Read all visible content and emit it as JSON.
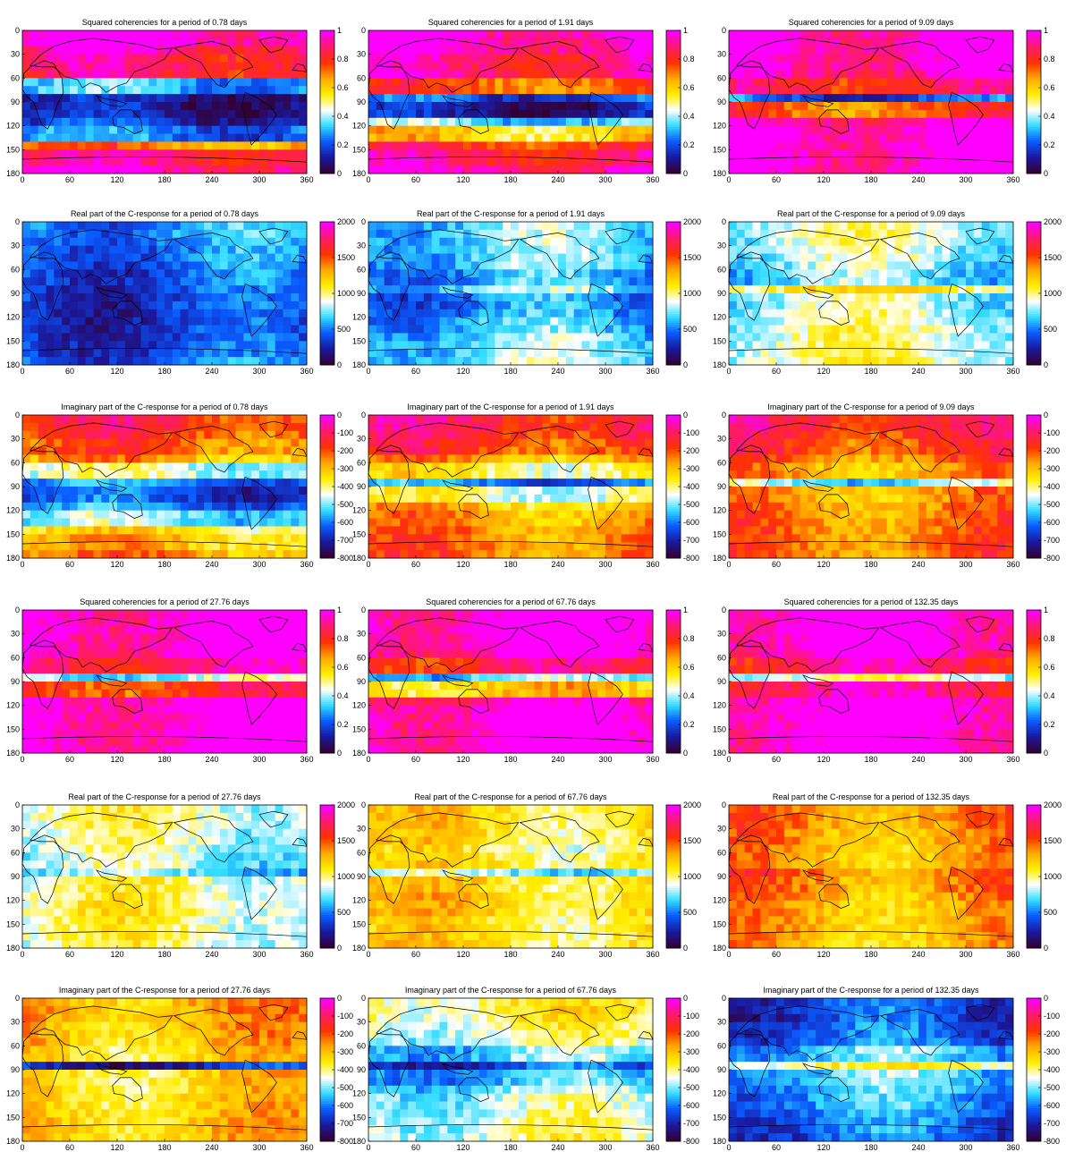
{
  "figure": {
    "panels": [
      {
        "title": "Squared coherencies for a period of   0.78 days",
        "colormap": "coherency",
        "vmin": 0,
        "vmax": 1,
        "cbar_ticks": [
          "0",
          "0.2",
          "0.4",
          "0.6",
          "0.8",
          "1"
        ],
        "bands": [
          1.0,
          0.92,
          0.88,
          0.85,
          0.3,
          0.1,
          0.1,
          0.15,
          0.25,
          0.7,
          0.88,
          0.95
        ]
      },
      {
        "title": "Squared coherencies for a period of   1.91 days",
        "colormap": "coherency",
        "vmin": 0,
        "vmax": 1,
        "cbar_ticks": [
          "0",
          "0.2",
          "0.4",
          "0.6",
          "0.8",
          "1"
        ],
        "bands": [
          0.98,
          0.97,
          0.9,
          0.92,
          0.75,
          0.2,
          0.1,
          0.35,
          0.6,
          0.8,
          0.88,
          0.95
        ]
      },
      {
        "title": "Squared coherencies for a period of   9.09 days",
        "colormap": "coherency",
        "vmin": 0,
        "vmax": 1,
        "cbar_ticks": [
          "0",
          "0.2",
          "0.4",
          "0.6",
          "0.8",
          "1"
        ],
        "bands": [
          1.0,
          1.0,
          0.98,
          0.95,
          0.85,
          0.2,
          0.75,
          0.95,
          1.0,
          1.0,
          1.0,
          1.0
        ]
      },
      {
        "title": "Real part of the C-response for a period of   0.78 days",
        "colormap": "cresponse",
        "vmin": 0,
        "vmax": 2000,
        "cbar_ticks": [
          "0",
          "500",
          "1000",
          "1500",
          "2000"
        ],
        "bands": [
          550,
          520,
          480,
          450,
          420,
          380,
          360,
          340,
          330,
          350,
          380,
          420
        ]
      },
      {
        "title": "Real part of the C-response for a period of   1.91 days",
        "colormap": "cresponse",
        "vmin": 0,
        "vmax": 2000,
        "cbar_ticks": [
          "0",
          "500",
          "1000",
          "1500",
          "2000"
        ],
        "bands": [
          700,
          700,
          680,
          650,
          560,
          720,
          500,
          520,
          600,
          680,
          720,
          750
        ]
      },
      {
        "title": "Real part of the C-response for a period of   9.09 days",
        "colormap": "cresponse",
        "vmin": 0,
        "vmax": 2000,
        "cbar_ticks": [
          "0",
          "500",
          "1000",
          "1500",
          "2000"
        ],
        "bands": [
          880,
          860,
          820,
          760,
          700,
          1100,
          820,
          860,
          900,
          930,
          950,
          960
        ]
      },
      {
        "title": "Imaginary part of the C-response for a period of   0.78 days",
        "colormap": "imaginary",
        "vmin": -800,
        "vmax": 0,
        "cbar_ticks": [
          "-800",
          "-700",
          "-600",
          "-500",
          "-400",
          "-300",
          "-200",
          "-100",
          "0"
        ],
        "bands": [
          -150,
          -180,
          -220,
          -280,
          -450,
          -600,
          -650,
          -600,
          -500,
          -350,
          -300,
          -250
        ]
      },
      {
        "title": "Imaginary part of the C-response for a period of   1.91 days",
        "colormap": "imaginary",
        "vmin": -800,
        "vmax": 0,
        "cbar_ticks": [
          "-800",
          "-700",
          "-600",
          "-500",
          "-400",
          "-300",
          "-200",
          "-100",
          "0"
        ],
        "bands": [
          -120,
          -140,
          -180,
          -260,
          -380,
          -600,
          -420,
          -300,
          -260,
          -240,
          -230,
          -220
        ]
      },
      {
        "title": "Imaginary part of the C-response for a period of   9.09 days",
        "colormap": "imaginary",
        "vmin": -800,
        "vmax": 0,
        "cbar_ticks": [
          "-800",
          "-700",
          "-600",
          "-500",
          "-400",
          "-300",
          "-200",
          "-100",
          "0"
        ],
        "bands": [
          -120,
          -140,
          -170,
          -210,
          -260,
          -500,
          -260,
          -240,
          -230,
          -220,
          -220,
          -215
        ]
      },
      {
        "title": "Squared coherencies for a period of  27.76 days",
        "colormap": "coherency",
        "vmin": 0,
        "vmax": 1,
        "cbar_ticks": [
          "0",
          "0.2",
          "0.4",
          "0.6",
          "0.8",
          "1"
        ],
        "bands": [
          1.0,
          1.0,
          1.0,
          0.98,
          0.9,
          0.4,
          0.8,
          1.0,
          1.0,
          1.0,
          1.0,
          1.0
        ]
      },
      {
        "title": "Squared coherencies for a period of  67.76 days",
        "colormap": "coherency",
        "vmin": 0,
        "vmax": 1,
        "cbar_ticks": [
          "0",
          "0.2",
          "0.4",
          "0.6",
          "0.8",
          "1"
        ],
        "bands": [
          1.0,
          1.0,
          1.0,
          0.98,
          0.85,
          0.35,
          0.6,
          0.92,
          1.0,
          1.0,
          1.0,
          1.0
        ]
      },
      {
        "title": "Squared coherencies for a period of 132.35 days",
        "colormap": "coherency",
        "vmin": 0,
        "vmax": 1,
        "cbar_ticks": [
          "0",
          "0.2",
          "0.4",
          "0.6",
          "0.8",
          "1"
        ],
        "bands": [
          1.0,
          1.0,
          1.0,
          0.98,
          0.88,
          0.45,
          0.9,
          1.0,
          1.0,
          1.0,
          1.0,
          1.0
        ]
      },
      {
        "title": "Real part of the C-response for a period of  27.76 days",
        "colormap": "cresponse",
        "vmin": 0,
        "vmax": 2000,
        "cbar_ticks": [
          "0",
          "500",
          "1000",
          "1500",
          "2000"
        ],
        "bands": [
          950,
          930,
          900,
          860,
          820,
          700,
          960,
          980,
          1000,
          980,
          960,
          950
        ]
      },
      {
        "title": "Real part of the C-response for a period of  67.76 days",
        "colormap": "cresponse",
        "vmin": 0,
        "vmax": 2000,
        "cbar_ticks": [
          "0",
          "500",
          "1000",
          "1500",
          "2000"
        ],
        "bands": [
          1150,
          1150,
          1120,
          1050,
          1100,
          800,
          1150,
          1180,
          1180,
          1100,
          1120,
          1150
        ]
      },
      {
        "title": "Real part of the C-response for a period of 132.35 days",
        "colormap": "cresponse",
        "vmin": 0,
        "vmax": 2000,
        "cbar_ticks": [
          "0",
          "500",
          "1000",
          "1500",
          "2000"
        ],
        "bands": [
          1400,
          1400,
          1350,
          1300,
          1300,
          1450,
          1400,
          1350,
          1300,
          1300,
          1300,
          1280
        ]
      },
      {
        "title": "Imaginary part of the C-response for a period of  27.76 days",
        "colormap": "imaginary",
        "vmin": -800,
        "vmax": 0,
        "cbar_ticks": [
          "-800",
          "-700",
          "-600",
          "-500",
          "-400",
          "-300",
          "-200",
          "-100",
          "0"
        ],
        "bands": [
          -270,
          -280,
          -290,
          -300,
          -330,
          -700,
          -330,
          -330,
          -320,
          -310,
          -300,
          -300
        ]
      },
      {
        "title": "Imaginary part of the C-response for a period of  67.76 days",
        "colormap": "imaginary",
        "vmin": -800,
        "vmax": 0,
        "cbar_ticks": [
          "-800",
          "-700",
          "-600",
          "-500",
          "-400",
          "-300",
          "-200",
          "-100",
          "0"
        ],
        "bands": [
          -380,
          -390,
          -420,
          -450,
          -520,
          -650,
          -560,
          -500,
          -470,
          -450,
          -440,
          -430
        ]
      },
      {
        "title": "Imaginary part of the C-response for a period of 132.35 days",
        "colormap": "imaginary",
        "vmin": -800,
        "vmax": 0,
        "cbar_ticks": [
          "-800",
          "-700",
          "-600",
          "-500",
          "-400",
          "-300",
          "-200",
          "-100",
          "0"
        ],
        "bands": [
          -650,
          -660,
          -640,
          -620,
          -550,
          -400,
          -540,
          -560,
          -580,
          -600,
          -620,
          -640
        ]
      }
    ]
  },
  "chart_data": {
    "type": "heatmap",
    "x": {
      "ticks": [
        0,
        60,
        120,
        180,
        240,
        300,
        360
      ],
      "range": [
        0,
        360
      ]
    },
    "y": {
      "ticks": [
        0,
        30,
        60,
        90,
        120,
        150,
        180
      ],
      "range": [
        0,
        180
      ],
      "direction": "top-to-bottom"
    },
    "grid": false,
    "colorbar": "right",
    "grid_cells": {
      "columns": 36,
      "rows": 18
    },
    "note_values": "Each panel is a 36×18 grid of cell values on a world map (longitude 0–360, colatitude 0–180). 'bands' hold approximate mean value per 15° colatitude band."
  }
}
